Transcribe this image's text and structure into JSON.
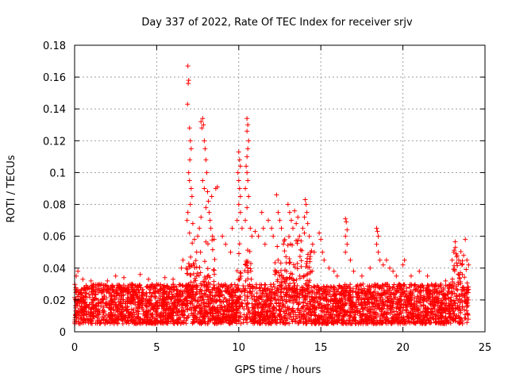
{
  "chart_data": {
    "type": "scatter",
    "title": "Day 337 of 2022, Rate Of TEC Index for receiver srjv",
    "xlabel": "GPS time / hours",
    "ylabel": "ROTI / TECUs",
    "xlim": [
      0,
      25
    ],
    "ylim": [
      0,
      0.18
    ],
    "x_ticks": [
      "0",
      "5",
      "10",
      "15",
      "20",
      "25"
    ],
    "y_ticks": [
      "0",
      "0.02",
      "0.04",
      "0.06",
      "0.08",
      "0.1",
      "0.12",
      "0.14",
      "0.16",
      "0.18"
    ],
    "grid": true,
    "marker": "+",
    "color": "#ff0000",
    "background_band": {
      "x_range": [
        0,
        24
      ],
      "y_typical": [
        0.005,
        0.03
      ]
    },
    "points": [
      [
        6.9,
        0.167
      ],
      [
        6.95,
        0.158
      ],
      [
        6.92,
        0.156
      ],
      [
        6.88,
        0.143
      ],
      [
        7.0,
        0.128
      ],
      [
        7.05,
        0.12
      ],
      [
        7.1,
        0.115
      ],
      [
        7.02,
        0.108
      ],
      [
        6.95,
        0.1
      ],
      [
        7.0,
        0.095
      ],
      [
        7.1,
        0.09
      ],
      [
        7.15,
        0.085
      ],
      [
        7.05,
        0.08
      ],
      [
        6.9,
        0.075
      ],
      [
        6.85,
        0.07
      ],
      [
        7.2,
        0.068
      ],
      [
        7.0,
        0.062
      ],
      [
        7.3,
        0.058
      ],
      [
        7.5,
        0.06
      ],
      [
        7.6,
        0.065
      ],
      [
        7.7,
        0.132
      ],
      [
        7.75,
        0.128
      ],
      [
        7.8,
        0.134
      ],
      [
        7.85,
        0.13
      ],
      [
        7.9,
        0.12
      ],
      [
        7.95,
        0.115
      ],
      [
        8.0,
        0.108
      ],
      [
        8.05,
        0.1
      ],
      [
        7.8,
        0.095
      ],
      [
        7.9,
        0.09
      ],
      [
        8.1,
        0.088
      ],
      [
        8.15,
        0.082
      ],
      [
        8.0,
        0.078
      ],
      [
        8.2,
        0.075
      ],
      [
        8.25,
        0.07
      ],
      [
        7.7,
        0.072
      ],
      [
        8.3,
        0.065
      ],
      [
        8.4,
        0.06
      ],
      [
        8.5,
        0.058
      ],
      [
        8.6,
        0.09
      ],
      [
        8.7,
        0.091
      ],
      [
        8.35,
        0.085
      ],
      [
        9.0,
        0.06
      ],
      [
        9.2,
        0.055
      ],
      [
        9.5,
        0.05
      ],
      [
        9.6,
        0.065
      ],
      [
        10.0,
        0.113
      ],
      [
        10.05,
        0.108
      ],
      [
        10.1,
        0.104
      ],
      [
        9.95,
        0.1
      ],
      [
        10.0,
        0.095
      ],
      [
        10.05,
        0.09
      ],
      [
        10.1,
        0.085
      ],
      [
        10.0,
        0.08
      ],
      [
        10.1,
        0.075
      ],
      [
        9.9,
        0.07
      ],
      [
        10.2,
        0.065
      ],
      [
        10.5,
        0.134
      ],
      [
        10.55,
        0.13
      ],
      [
        10.5,
        0.126
      ],
      [
        10.6,
        0.12
      ],
      [
        10.55,
        0.115
      ],
      [
        10.5,
        0.11
      ],
      [
        10.45,
        0.104
      ],
      [
        10.5,
        0.1
      ],
      [
        10.55,
        0.095
      ],
      [
        10.4,
        0.09
      ],
      [
        10.6,
        0.085
      ],
      [
        10.5,
        0.078
      ],
      [
        10.4,
        0.07
      ],
      [
        10.7,
        0.065
      ],
      [
        10.8,
        0.06
      ],
      [
        11.0,
        0.063
      ],
      [
        11.2,
        0.06
      ],
      [
        11.4,
        0.075
      ],
      [
        11.5,
        0.065
      ],
      [
        11.6,
        0.055
      ],
      [
        11.8,
        0.07
      ],
      [
        12.0,
        0.065
      ],
      [
        12.1,
        0.06
      ],
      [
        12.3,
        0.086
      ],
      [
        12.4,
        0.075
      ],
      [
        12.5,
        0.07
      ],
      [
        12.6,
        0.065
      ],
      [
        12.8,
        0.058
      ],
      [
        13.0,
        0.08
      ],
      [
        13.1,
        0.075
      ],
      [
        13.2,
        0.07
      ],
      [
        13.3,
        0.065
      ],
      [
        13.4,
        0.076
      ],
      [
        13.5,
        0.068
      ],
      [
        13.6,
        0.072
      ],
      [
        13.7,
        0.06
      ],
      [
        13.8,
        0.057
      ],
      [
        13.9,
        0.065
      ],
      [
        14.0,
        0.072
      ],
      [
        14.05,
        0.083
      ],
      [
        14.1,
        0.08
      ],
      [
        14.15,
        0.075
      ],
      [
        14.2,
        0.068
      ],
      [
        14.0,
        0.062
      ],
      [
        14.3,
        0.06
      ],
      [
        14.5,
        0.055
      ],
      [
        14.6,
        0.05
      ],
      [
        14.9,
        0.062
      ],
      [
        15.0,
        0.058
      ],
      [
        15.1,
        0.05
      ],
      [
        15.2,
        0.045
      ],
      [
        16.5,
        0.071
      ],
      [
        16.55,
        0.069
      ],
      [
        16.6,
        0.064
      ],
      [
        16.5,
        0.06
      ],
      [
        16.6,
        0.055
      ],
      [
        16.5,
        0.05
      ],
      [
        18.4,
        0.065
      ],
      [
        18.45,
        0.063
      ],
      [
        18.5,
        0.06
      ],
      [
        18.4,
        0.055
      ],
      [
        18.5,
        0.05
      ],
      [
        18.6,
        0.045
      ],
      [
        18.8,
        0.042
      ],
      [
        19.0,
        0.045
      ],
      [
        19.2,
        0.04
      ],
      [
        19.4,
        0.038
      ],
      [
        19.6,
        0.035
      ],
      [
        20.0,
        0.042
      ],
      [
        20.1,
        0.045
      ],
      [
        20.5,
        0.035
      ],
      [
        21.0,
        0.038
      ],
      [
        21.5,
        0.035
      ],
      [
        22.0,
        0.03
      ],
      [
        22.6,
        0.032
      ],
      [
        23.0,
        0.045
      ],
      [
        23.1,
        0.05
      ],
      [
        23.2,
        0.053
      ],
      [
        23.3,
        0.048
      ],
      [
        23.4,
        0.045
      ],
      [
        23.5,
        0.043
      ],
      [
        23.6,
        0.042
      ],
      [
        23.7,
        0.048
      ],
      [
        23.8,
        0.058
      ],
      [
        23.9,
        0.045
      ],
      [
        24.0,
        0.042
      ],
      [
        0.1,
        0.035
      ],
      [
        0.2,
        0.038
      ],
      [
        0.5,
        0.033
      ],
      [
        1.0,
        0.032
      ],
      [
        1.5,
        0.03
      ],
      [
        2.0,
        0.032
      ],
      [
        2.5,
        0.035
      ],
      [
        3.0,
        0.034
      ],
      [
        3.5,
        0.03
      ],
      [
        4.0,
        0.036
      ],
      [
        4.5,
        0.033
      ],
      [
        5.0,
        0.03
      ],
      [
        5.5,
        0.034
      ],
      [
        6.0,
        0.033
      ],
      [
        6.5,
        0.04
      ],
      [
        6.6,
        0.045
      ],
      [
        15.5,
        0.04
      ],
      [
        16.0,
        0.035
      ],
      [
        17.0,
        0.038
      ],
      [
        17.5,
        0.035
      ],
      [
        18.0,
        0.04
      ],
      [
        16.8,
        0.045
      ],
      [
        15.8,
        0.038
      ]
    ]
  }
}
